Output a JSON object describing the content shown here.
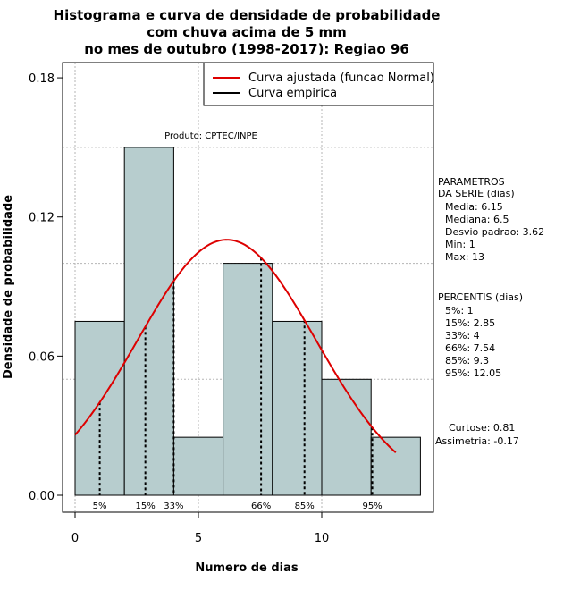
{
  "chart_data": {
    "type": "bar",
    "title_lines": [
      "Histograma e curva de densidade de probabilidade",
      "com chuva acima de 5 mm",
      "no mes de outubro (1998-2017): Regiao 96"
    ],
    "xlabel": "Numero de dias",
    "ylabel": "Densidade de probabilidade",
    "xlim": [
      -0.5,
      14.5
    ],
    "ylim": [
      0,
      0.18
    ],
    "x_ticks": [
      0,
      5,
      10
    ],
    "y_ticks": [
      0.0,
      0.06,
      0.12,
      0.18
    ],
    "y_tick_labels": [
      "0.00",
      "0.06",
      "0.12",
      "0.18"
    ],
    "bins": [
      {
        "x0": 0,
        "x1": 2,
        "density": 0.075
      },
      {
        "x0": 2,
        "x1": 4,
        "density": 0.15
      },
      {
        "x0": 4,
        "x1": 6,
        "density": 0.025
      },
      {
        "x0": 6,
        "x1": 8,
        "density": 0.1
      },
      {
        "x0": 8,
        "x1": 10,
        "density": 0.075
      },
      {
        "x0": 10,
        "x1": 12,
        "density": 0.05
      },
      {
        "x0": 12,
        "x1": 14,
        "density": 0.025
      }
    ],
    "grid_y": [
      0.05,
      0.1,
      0.15
    ],
    "percentiles": [
      {
        "label": "5%",
        "value": 1
      },
      {
        "label": "15%",
        "value": 2.85
      },
      {
        "label": "33%",
        "value": 4
      },
      {
        "label": "66%",
        "value": 7.54
      },
      {
        "label": "85%",
        "value": 9.3
      },
      {
        "label": "95%",
        "value": 12.05
      }
    ],
    "normal_curve": {
      "mean": 6.15,
      "sd": 3.62,
      "x_range": [
        0,
        13
      ],
      "color": "#dd0000"
    },
    "legend": {
      "placement": "top-right",
      "entries": [
        {
          "label": "Curva ajustada (funcao Normal)",
          "color": "#dd0000"
        },
        {
          "label": "Curva empirica",
          "color": "#000000"
        }
      ]
    },
    "annotation": "Produto: CPTEC/INPE",
    "bar_color": "#b7cdce"
  },
  "side_panel": {
    "params_header": [
      "PARAMETROS",
      "DA SERIE (dias)"
    ],
    "params": [
      "Media: 6.15",
      "Mediana: 6.5",
      "Desvio padrao: 3.62",
      "Min: 1",
      "Max: 13"
    ],
    "percentis_header": "PERCENTIS (dias)",
    "percentis": [
      "5%: 1",
      "15%: 2.85",
      "33%: 4",
      "66%: 7.54",
      "85%: 9.3",
      "95%: 12.05"
    ],
    "curtose": "Curtose: 0.81",
    "assimetria": "Assimetria: -0.17"
  }
}
